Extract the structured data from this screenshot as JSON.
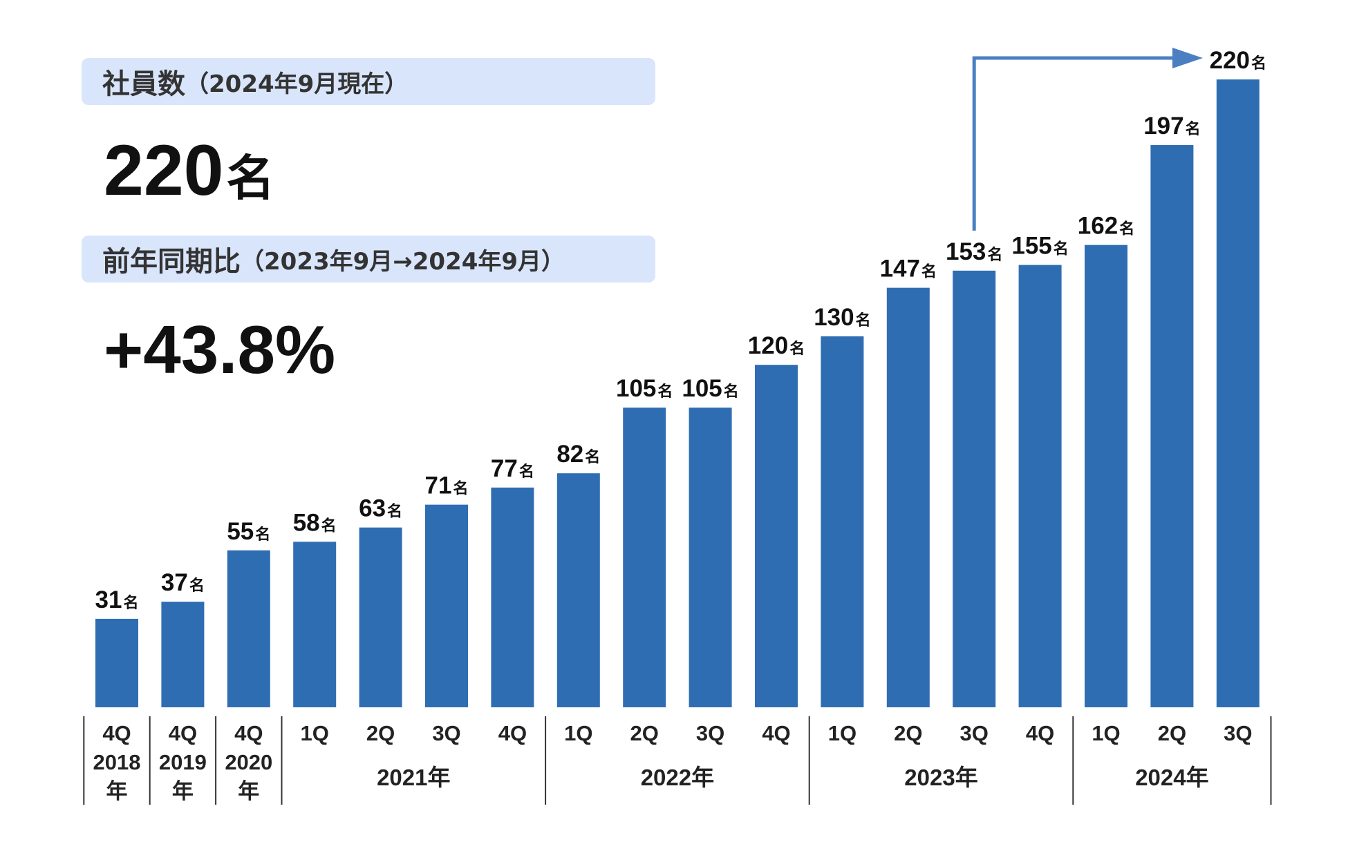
{
  "summary": {
    "employees_label": "社員数",
    "employees_label_suffix": "（2024年9月現在）",
    "employees_value": "220",
    "employees_unit": "名",
    "yoy_label": "前年同期比",
    "yoy_label_suffix": "（2023年9月→2024年9月）",
    "yoy_value": "+43.8%"
  },
  "colors": {
    "bar": "#2f6db3",
    "arrow": "#4a7fc1",
    "label_box": "#d9e5fb"
  },
  "chart_data": {
    "type": "bar",
    "value_unit": "名",
    "categories": [
      "4Q 2018年",
      "4Q 2019年",
      "4Q 2020年",
      "1Q 2021年",
      "2Q 2021年",
      "3Q 2021年",
      "4Q 2021年",
      "1Q 2022年",
      "2Q 2022年",
      "3Q 2022年",
      "4Q 2022年",
      "1Q 2023年",
      "2Q 2023年",
      "3Q 2023年",
      "4Q 2023年",
      "1Q 2024年",
      "2Q 2024年",
      "3Q 2024年"
    ],
    "values": [
      31,
      37,
      55,
      58,
      63,
      71,
      77,
      82,
      105,
      105,
      120,
      130,
      147,
      153,
      155,
      162,
      197,
      220
    ],
    "tick_labels": [
      [
        "4Q",
        "2018",
        "年"
      ],
      [
        "4Q",
        "2019",
        "年"
      ],
      [
        "4Q",
        "2020",
        "年"
      ],
      [
        "1Q"
      ],
      [
        "2Q"
      ],
      [
        "3Q"
      ],
      [
        "4Q"
      ],
      [
        "1Q"
      ],
      [
        "2Q"
      ],
      [
        "3Q"
      ],
      [
        "4Q"
      ],
      [
        "1Q"
      ],
      [
        "2Q"
      ],
      [
        "3Q"
      ],
      [
        "4Q"
      ],
      [
        "1Q"
      ],
      [
        "2Q"
      ],
      [
        "3Q"
      ]
    ],
    "year_groups": [
      {
        "label": "2021年",
        "start": 3,
        "end": 6
      },
      {
        "label": "2022年",
        "start": 7,
        "end": 10
      },
      {
        "label": "2023年",
        "start": 11,
        "end": 14
      },
      {
        "label": "2024年",
        "start": 15,
        "end": 17
      }
    ],
    "ylim": [
      0,
      220
    ],
    "grid": false,
    "legend": "none",
    "annotation": {
      "type": "arrow",
      "from_index": 13,
      "to_index": 17
    }
  }
}
